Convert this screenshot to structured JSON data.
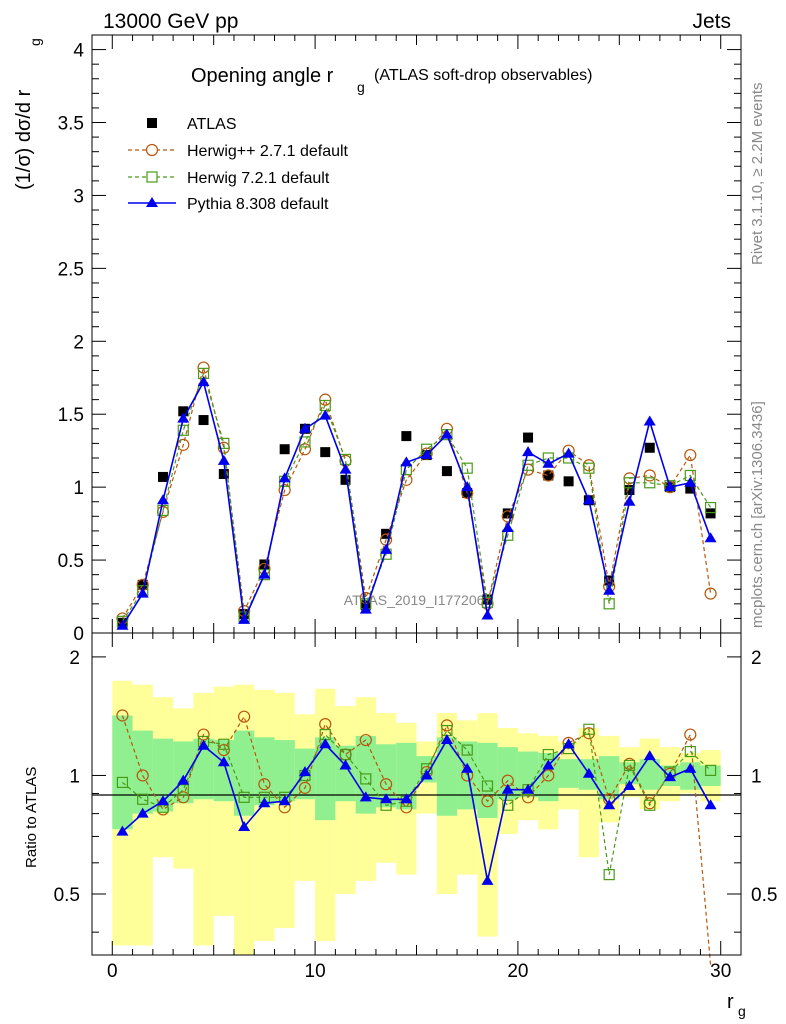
{
  "header": {
    "left": "13000 GeV pp",
    "right": "Jets"
  },
  "side_labels": {
    "rivet": "Rivet 3.1.10, ≥ 2.2M events",
    "mcplots": "mcplots.cern.ch [arXiv:1306.3436]"
  },
  "watermark": "ATLAS_2019_I1772062",
  "chart_data": [
    {
      "type": "scatter",
      "title_main": "Opening angle r",
      "title_sub": "g",
      "title_suffix": "(ATLAS soft-drop observables)",
      "ylabel": "(1/σ) dσ/d r",
      "ylabel_sub": "g",
      "xlim": [
        -1,
        31
      ],
      "ylim": [
        0,
        4.1
      ],
      "x_ticks": [
        0,
        10,
        20,
        30
      ],
      "y_ticks": [
        0,
        0.5,
        1,
        1.5,
        2,
        2.5,
        3,
        3.5,
        4
      ],
      "y_tick_labels": [
        "0",
        "0.5",
        "1",
        "1.5",
        "2",
        "2.5",
        "3",
        "3.5",
        "4"
      ],
      "legend_position": "top-left",
      "x": [
        0.5,
        1.5,
        2.5,
        3.5,
        4.5,
        5.5,
        6.5,
        7.5,
        8.5,
        9.5,
        10.5,
        11.5,
        12.5,
        13.5,
        14.5,
        15.5,
        16.5,
        17.5,
        18.5,
        19.5,
        20.5,
        21.5,
        22.5,
        23.5,
        24.5,
        25.5,
        26.5,
        27.5,
        28.5,
        29.5
      ],
      "series": [
        {
          "name": "ATLAS",
          "color": "#000000",
          "marker": "square-filled",
          "values": [
            0.07,
            0.33,
            1.07,
            1.52,
            1.46,
            1.09,
            0.13,
            0.47,
            1.26,
            1.4,
            1.24,
            1.05,
            0.19,
            0.68,
            1.35,
            1.22,
            1.11,
            0.96,
            0.23,
            0.82,
            1.34,
            1.08,
            1.04,
            0.91,
            0.36,
            0.98,
            1.27,
            1.0,
            0.99,
            0.82
          ]
        },
        {
          "name": "Herwig++ 2.7.1 default",
          "color": "#b8560b",
          "marker": "circle-open",
          "values": [
            0.1,
            0.33,
            0.83,
            1.29,
            1.82,
            1.27,
            0.15,
            0.44,
            0.98,
            1.26,
            1.6,
            1.18,
            0.24,
            0.64,
            1.05,
            1.23,
            1.4,
            0.96,
            0.2,
            0.8,
            1.12,
            1.08,
            1.25,
            1.15,
            0.32,
            1.06,
            1.08,
            1.0,
            1.22,
            0.27
          ]
        },
        {
          "name": "Herwig 7.2.1 default",
          "color": "#4a9a18",
          "marker": "square-open",
          "values": [
            0.08,
            0.29,
            0.84,
            1.39,
            1.78,
            1.3,
            0.11,
            0.4,
            1.04,
            1.31,
            1.56,
            1.19,
            0.2,
            0.54,
            1.12,
            1.26,
            1.36,
            1.13,
            0.21,
            0.67,
            1.15,
            1.2,
            1.2,
            1.13,
            0.2,
            1.03,
            1.03,
            1.01,
            1.08,
            0.86
          ]
        },
        {
          "name": "Pythia 8.308 default",
          "color": "#0000ee",
          "marker": "triangle-filled",
          "values": [
            0.05,
            0.27,
            0.91,
            1.47,
            1.72,
            1.18,
            0.09,
            0.4,
            1.06,
            1.4,
            1.49,
            1.12,
            0.16,
            0.57,
            1.17,
            1.22,
            1.36,
            1.0,
            0.12,
            0.72,
            1.24,
            1.16,
            1.23,
            0.91,
            0.29,
            0.9,
            1.45,
            1.0,
            1.03,
            0.65
          ]
        }
      ]
    },
    {
      "type": "line",
      "ylabel": "Ratio to ATLAS",
      "xlabel": "r",
      "xlabel_sub": "g",
      "xlim": [
        -1,
        31
      ],
      "ylim": [
        0.35,
        2.3
      ],
      "log_y": true,
      "x_ticks": [
        0,
        10,
        20,
        30
      ],
      "x_tick_labels": [
        "0",
        "10",
        "20",
        "30"
      ],
      "y_ticks": [
        0.5,
        1,
        2
      ],
      "y_tick_labels": [
        "0.5",
        "1",
        "2"
      ],
      "reference_line": 1,
      "x": [
        0.5,
        1.5,
        2.5,
        3.5,
        4.5,
        5.5,
        6.5,
        7.5,
        8.5,
        9.5,
        10.5,
        11.5,
        12.5,
        13.5,
        14.5,
        15.5,
        16.5,
        17.5,
        18.5,
        19.5,
        20.5,
        21.5,
        22.5,
        23.5,
        24.5,
        25.5,
        26.5,
        27.5,
        28.5,
        29.5
      ],
      "bands": {
        "green": {
          "color": "#90f090",
          "low": [
            0.73,
            0.8,
            0.81,
            0.85,
            0.87,
            0.86,
            0.79,
            0.84,
            0.86,
            0.87,
            0.77,
            0.86,
            0.8,
            0.83,
            0.82,
            0.96,
            0.79,
            0.82,
            0.78,
            0.87,
            0.88,
            0.86,
            0.93,
            0.92,
            0.87,
            0.95,
            0.92,
            0.94,
            0.92,
            0.94
          ],
          "high": [
            1.42,
            1.3,
            1.24,
            1.22,
            1.24,
            1.23,
            1.3,
            1.25,
            1.23,
            1.17,
            1.25,
            1.19,
            1.26,
            1.2,
            1.21,
            1.12,
            1.25,
            1.22,
            1.21,
            1.18,
            1.15,
            1.14,
            1.1,
            1.1,
            1.12,
            1.08,
            1.1,
            1.06,
            1.08,
            1.06
          ]
        },
        "yellow": {
          "color": "#ffff99",
          "low": [
            0.37,
            0.37,
            0.62,
            0.58,
            0.37,
            0.44,
            0.35,
            0.38,
            0.41,
            0.54,
            0.38,
            0.5,
            0.54,
            0.6,
            0.56,
            0.8,
            0.5,
            0.56,
            0.39,
            0.71,
            0.77,
            0.73,
            0.82,
            0.62,
            0.76,
            0.88,
            0.82,
            0.86,
            0.9,
            0.86
          ],
          "high": [
            1.74,
            1.7,
            1.58,
            1.48,
            1.62,
            1.68,
            1.7,
            1.65,
            1.62,
            1.43,
            1.66,
            1.5,
            1.58,
            1.44,
            1.36,
            1.22,
            1.44,
            1.38,
            1.44,
            1.32,
            1.28,
            1.26,
            1.22,
            1.32,
            1.26,
            1.18,
            1.24,
            1.18,
            1.14,
            1.16
          ]
        }
      },
      "series": [
        {
          "name": "Herwig++ 2.7.1 default",
          "color": "#b8560b",
          "marker": "circle-open",
          "values": [
            1.42,
            1.0,
            0.82,
            0.88,
            1.27,
            1.16,
            1.41,
            0.95,
            0.83,
            0.93,
            1.35,
            1.13,
            1.23,
            0.95,
            0.83,
            1.02,
            1.34,
            1.0,
            0.86,
            0.97,
            0.88,
            1.0,
            1.21,
            1.28,
            0.87,
            1.07,
            0.85,
            1.01,
            1.27,
            0.33
          ]
        },
        {
          "name": "Herwig 7.2.1 default",
          "color": "#4a9a18",
          "marker": "square-open",
          "values": [
            0.96,
            0.87,
            0.83,
            0.92,
            1.22,
            1.2,
            0.88,
            0.88,
            0.88,
            1.0,
            1.27,
            1.13,
            0.98,
            0.84,
            0.86,
            1.04,
            1.3,
            1.16,
            0.94,
            0.84,
            0.92,
            1.13,
            1.17,
            1.31,
            0.56,
            1.06,
            0.84,
            1.02,
            1.15,
            1.03
          ]
        },
        {
          "name": "Pythia 8.308 default",
          "color": "#0000ee",
          "marker": "triangle-filled",
          "values": [
            0.72,
            0.8,
            0.86,
            0.97,
            1.19,
            1.08,
            0.74,
            0.85,
            0.86,
            1.02,
            1.2,
            1.06,
            0.88,
            0.87,
            0.87,
            1.0,
            1.23,
            1.04,
            0.54,
            0.92,
            0.92,
            1.06,
            1.2,
            1.01,
            0.84,
            0.94,
            1.12,
            0.99,
            1.04,
            0.84
          ]
        }
      ]
    }
  ]
}
